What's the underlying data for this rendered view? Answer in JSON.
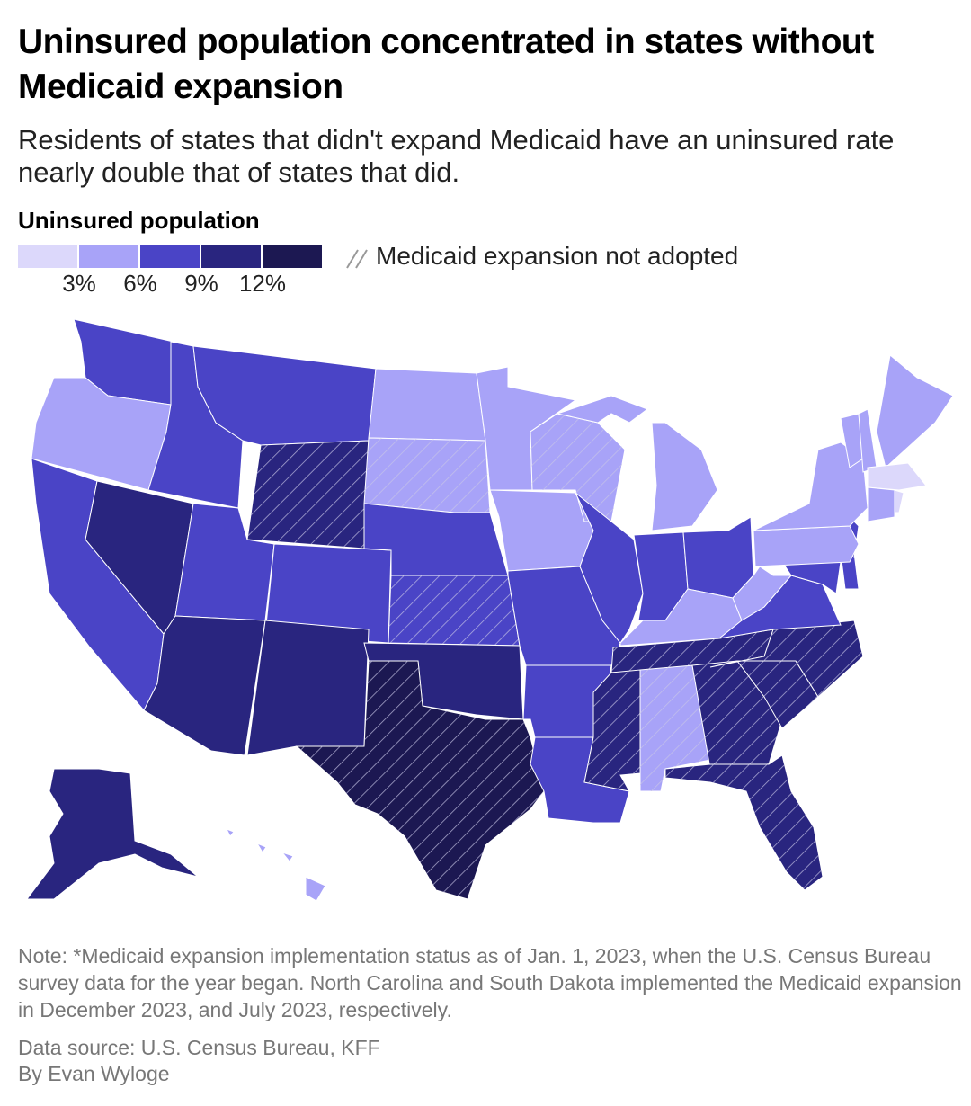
{
  "title": "Uninsured population concentrated in states without Medicaid expansion",
  "subtitle": "Residents of states that didn't expand Medicaid have an uninsured rate nearly double that of states that did.",
  "legend": {
    "title": "Uninsured population",
    "colors": [
      "#dcd8fb",
      "#a8a3f8",
      "#4a44c6",
      "#29257f",
      "#1c1852"
    ],
    "ticks": [
      "3%",
      "6%",
      "9%",
      "12%"
    ],
    "hatch_label": "Medicaid expansion not adopted"
  },
  "note": "Note: *Medicaid expansion implementation status as of Jan. 1, 2023, when the U.S. Census Bureau survey data for the year began. North Carolina and South Dakota implemented the Medicaid expansion in December 2023, and July 2023, respectively.",
  "source": "Data source: U.S. Census Bureau, KFF",
  "byline": "By Evan Wyloge",
  "chart_data": {
    "type": "choropleth",
    "bins": [
      "<3%",
      "3-6%",
      "6-9%",
      "9-12%",
      ">12%"
    ],
    "regions": {
      "MA": 0,
      "RI": 0,
      "OR": 1,
      "ND": 1,
      "MN": 1,
      "IA": 1,
      "WI": 1,
      "MI": 1,
      "NY": 1,
      "PA": 1,
      "VT": 1,
      "NH": 1,
      "ME": 1,
      "CT": 1,
      "WV": 1,
      "KY": 1,
      "AL": 1,
      "HI": 1,
      "SD": 1,
      "WA": 2,
      "ID": 2,
      "MT": 2,
      "CA": 2,
      "UT": 2,
      "CO": 2,
      "NE": 2,
      "KS": 2,
      "MO": 2,
      "IL": 2,
      "IN": 2,
      "OH": 2,
      "LA": 2,
      "AR": 2,
      "NJ": 2,
      "MD": 2,
      "DE": 2,
      "VA": 2,
      "NV": 3,
      "AZ": 3,
      "NM": 3,
      "OK": 3,
      "WY": 3,
      "TN": 3,
      "MS": 3,
      "GA": 3,
      "SC": 3,
      "NC": 3,
      "FL": 3,
      "AK": 3,
      "TX": 4
    },
    "not_expanded": [
      "WY",
      "SD",
      "WI",
      "KS",
      "TX",
      "TN",
      "MS",
      "AL",
      "GA",
      "SC",
      "NC",
      "FL"
    ]
  }
}
